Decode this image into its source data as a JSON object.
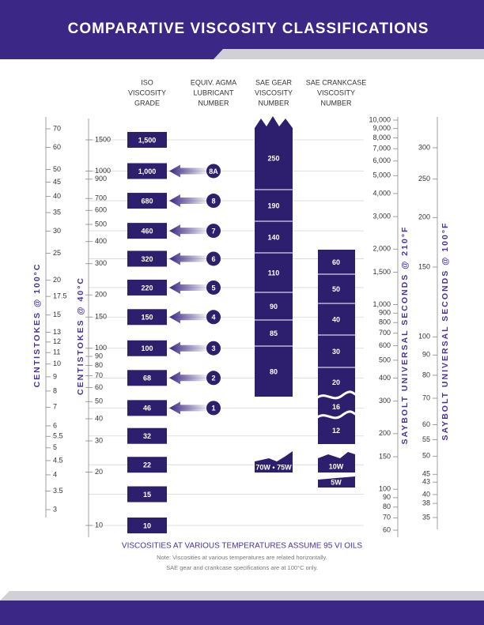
{
  "title": "COMPARATIVE VISCOSITY CLASSIFICATIONS",
  "columns": {
    "iso": [
      "ISO",
      "VISCOSITY",
      "GRADE"
    ],
    "agma": [
      "EQUIV. AGMA",
      "LUBRICANT",
      "NUMBER"
    ],
    "gear": [
      "SAE GEAR",
      "VISCOSITY",
      "NUMBER"
    ],
    "crankcase": [
      "SAE CRANKCASE",
      "VISCOSITY",
      "NUMBER"
    ]
  },
  "scales": {
    "cst100": {
      "title": "CENTISTOKES @ 100°C",
      "ticks": [
        70,
        60,
        50,
        45,
        40,
        35,
        30,
        25,
        20,
        17.5,
        15,
        13,
        12,
        11,
        10,
        9,
        8,
        7,
        6,
        5.5,
        5,
        4.5,
        4,
        3.5,
        3
      ]
    },
    "cst40": {
      "title": "CENTISTOKES @ 40°C",
      "ticks": [
        1500,
        1000,
        900,
        700,
        600,
        500,
        400,
        300,
        200,
        150,
        100,
        90,
        80,
        70,
        60,
        50,
        40,
        30,
        20,
        10
      ]
    },
    "sus210": {
      "title": "SAYBOLT UNIVERSAL SECONDS @ 210°F",
      "ticks": [
        {
          "value": 10000,
          "label": "10,000"
        },
        {
          "value": 9000,
          "label": "9,000"
        },
        {
          "value": 8000,
          "label": "8,000"
        },
        {
          "value": 7000,
          "label": "7,000"
        },
        {
          "value": 6000,
          "label": "6,000"
        },
        {
          "value": 5000,
          "label": "5,000"
        },
        {
          "value": 4000,
          "label": "4,000"
        },
        {
          "value": 3000,
          "label": "3,000"
        },
        {
          "value": 2000,
          "label": "2,000"
        },
        {
          "value": 1500,
          "label": "1,500"
        },
        {
          "value": 1000,
          "label": "1,000"
        },
        900,
        800,
        700,
        600,
        500,
        400,
        300,
        200,
        150,
        100,
        90,
        80,
        70,
        60
      ]
    },
    "sus100": {
      "title": "SAYBOLT UNIVERSAL SECONDS @ 100°F",
      "ticks": [
        300,
        250,
        200,
        150,
        100,
        90,
        80,
        70,
        60,
        55,
        50,
        45,
        43,
        40,
        38,
        35
      ]
    }
  },
  "iso_grades": [
    {
      "value": 1500,
      "label": "1,500"
    },
    {
      "value": 1000,
      "label": "1,000",
      "agma": "8A"
    },
    {
      "value": 680,
      "label": "680",
      "agma": "8"
    },
    {
      "value": 460,
      "label": "460",
      "agma": "7"
    },
    {
      "value": 320,
      "label": "320",
      "agma": "6"
    },
    {
      "value": 220,
      "label": "220",
      "agma": "5"
    },
    {
      "value": 150,
      "label": "150",
      "agma": "4"
    },
    {
      "value": 100,
      "label": "100",
      "agma": "3"
    },
    {
      "value": 68,
      "label": "68",
      "agma": "2"
    },
    {
      "value": 46,
      "label": "46",
      "agma": "1"
    },
    {
      "value": 32,
      "label": "32"
    },
    {
      "value": 22,
      "label": "22"
    },
    {
      "value": 15,
      "label": "15"
    },
    {
      "value": 10,
      "label": "10"
    }
  ],
  "gear": [
    "250",
    "190",
    "140",
    "110",
    "90",
    "85",
    "80"
  ],
  "gear_winter": "70W • 75W",
  "crankcase": [
    "60",
    "50",
    "40",
    "30",
    "20",
    "16",
    "12"
  ],
  "crankcase_winter": [
    "10W",
    "5W"
  ],
  "footer": {
    "heading": "VISCOSITIES AT VARIOUS TEMPERATURES ASSUME 95 VI OILS",
    "notes": [
      "Note: Viscosities at various temperatures are related horizontally.",
      "SAE gear and crankcase specifications are at 100°C only."
    ]
  }
}
